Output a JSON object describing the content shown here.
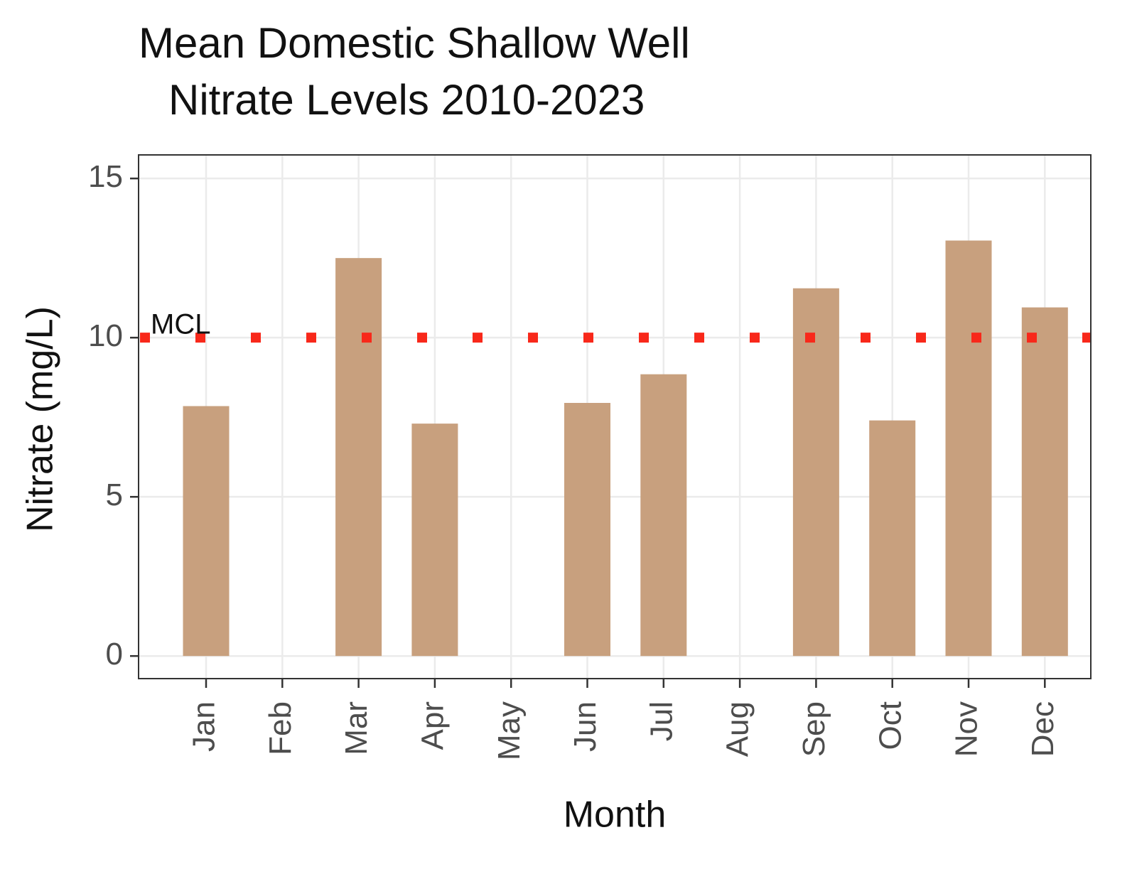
{
  "chart_data": {
    "type": "bar",
    "title": [
      "Mean Domestic Shallow Well",
      "Nitrate Levels 2010-2023"
    ],
    "x_label": "Month",
    "y_label": "Nitrate (mg/L)",
    "categories": [
      "Jan",
      "Feb",
      "Mar",
      "Apr",
      "May",
      "Jun",
      "Jul",
      "Aug",
      "Sep",
      "Oct",
      "Nov",
      "Dec"
    ],
    "values": [
      7.85,
      null,
      12.5,
      7.3,
      null,
      7.95,
      8.85,
      null,
      11.55,
      7.4,
      13.05,
      10.95
    ],
    "color": "#c8a07e",
    "ylim": [
      -0.71,
      15.74
    ],
    "yticks": [
      0,
      5,
      10,
      15
    ],
    "grid": true,
    "reference_line": {
      "value": 10,
      "label": "MCL",
      "color": "#f8281a"
    }
  }
}
